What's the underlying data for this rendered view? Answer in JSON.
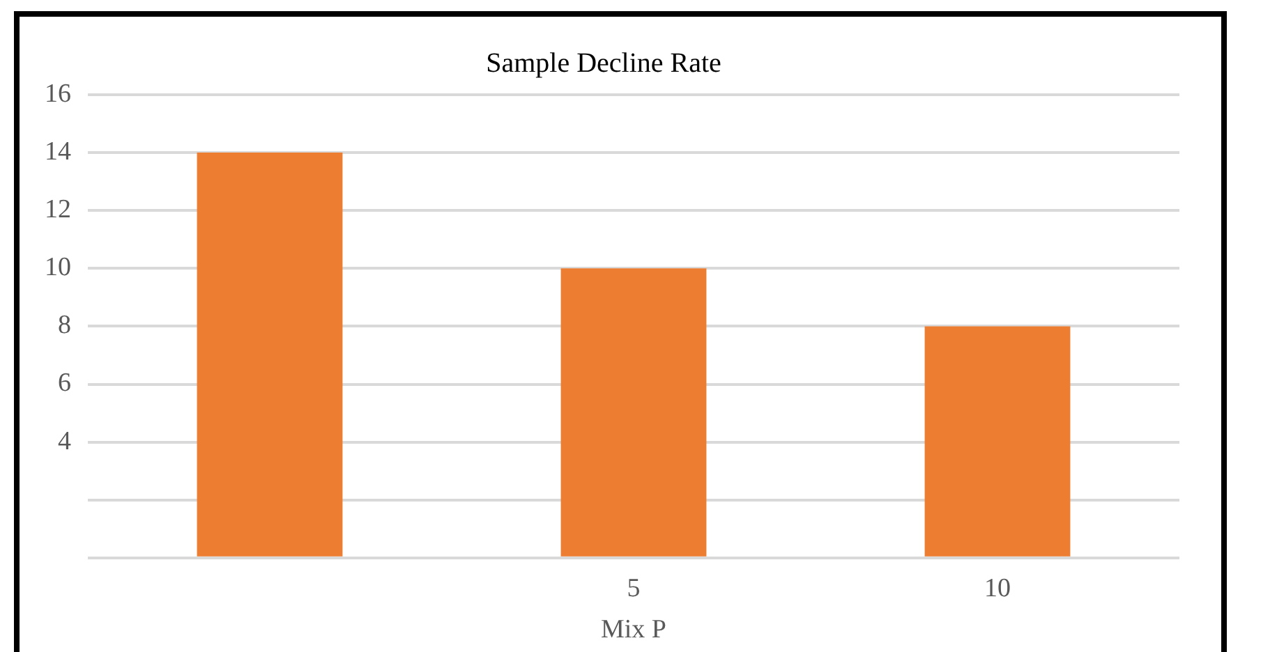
{
  "chart_data": {
    "type": "bar",
    "title": "Sample Decline Rate",
    "xlabel": "Mix P",
    "categories": [
      null,
      "5",
      "10"
    ],
    "values": [
      14,
      10,
      8
    ],
    "color": "#ed7d31",
    "ylim": [
      0,
      16
    ],
    "yticks": [
      {
        "value": 0,
        "label": null
      },
      {
        "value": 2,
        "label": null
      },
      4,
      6,
      8,
      10,
      12,
      14,
      16
    ],
    "grid": "y"
  }
}
